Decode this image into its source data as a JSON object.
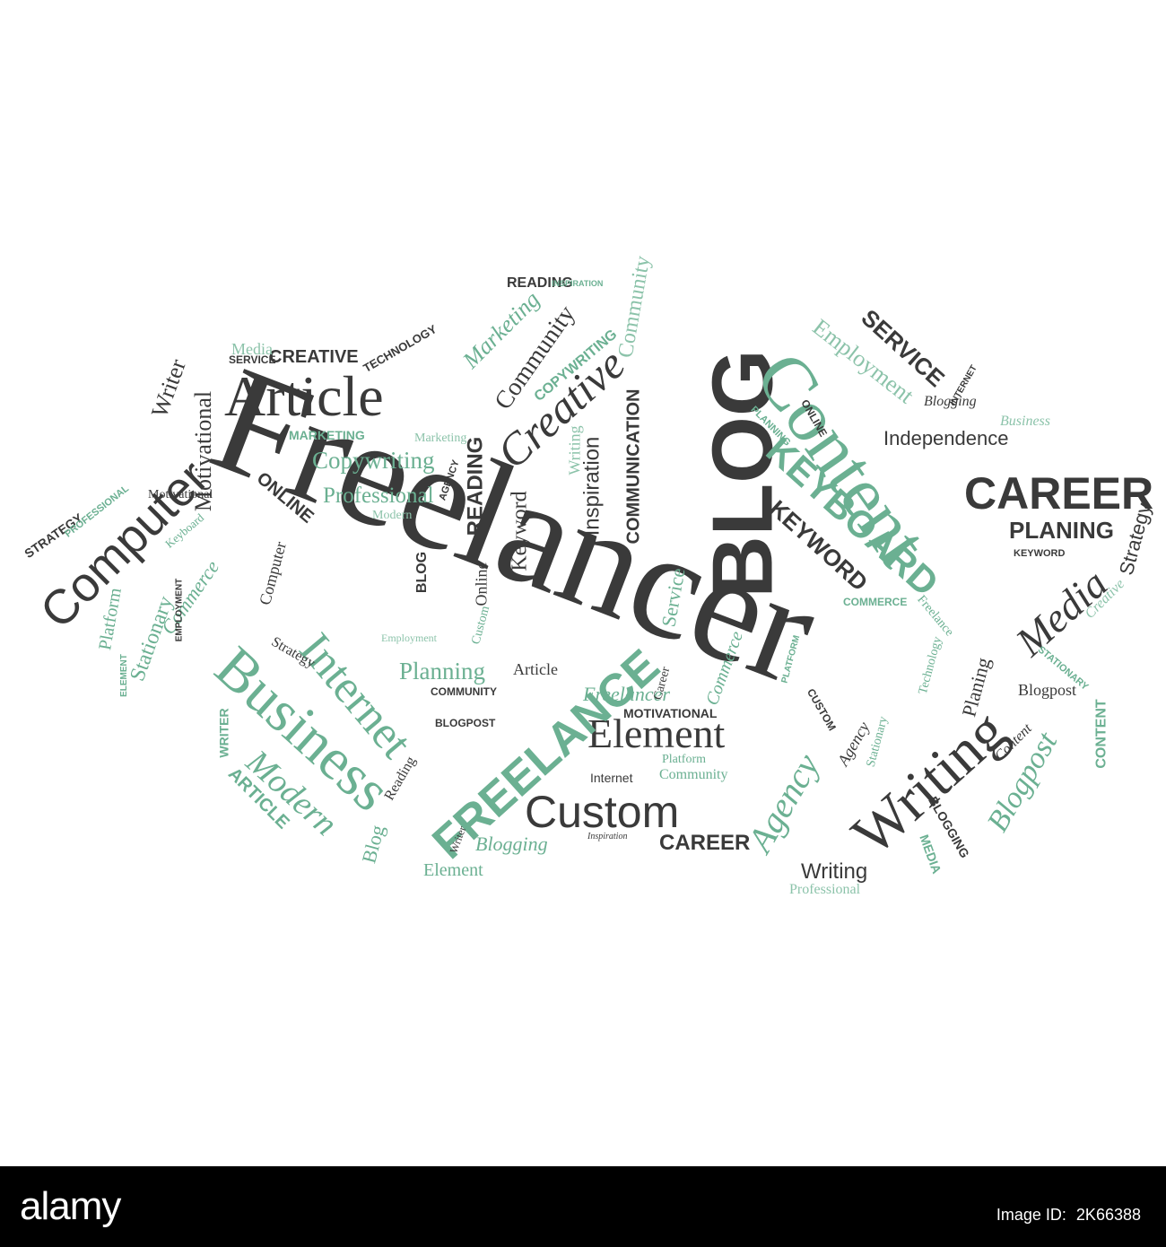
{
  "colors": {
    "dark": "#3a3a3a",
    "green": "#6bb092",
    "light_green": "#8cc3aa",
    "footer_bg": "#000000",
    "footer_text": "#ffffff"
  },
  "cloud": {
    "main_word": "Freelancer",
    "words": {
      "blog": "BLOG",
      "content": "Content",
      "career": "CAREER",
      "article": "Article",
      "computer": "Computer",
      "business": "Business",
      "internet": "Internet",
      "writing": "Writing",
      "custom": "Custom",
      "element": "Element",
      "keyboard": "KEYBOARD",
      "keyword": "KEYWORD",
      "creative": "Creative",
      "media": "Media",
      "planing": "PLANING",
      "freelance": "FREELANCE",
      "modern": "Modern",
      "agency": "Agency",
      "blogpost": "Blogpost",
      "copywriting": "Copywriting",
      "professional": "Professional",
      "independence": "Independence",
      "employment": "Employment",
      "service": "SERVICE",
      "community": "Community",
      "inspiration": "Inspiration",
      "communication": "COMMUNICATION",
      "reading": "READING",
      "motivational": "Motivational",
      "stationary": "Stationary",
      "platform": "Platform",
      "planning": "Planning",
      "strategy": "Strategy",
      "online": "ONLINE",
      "writer": "Writer",
      "marketing": "Marketing",
      "technology": "TECHNOLOGY",
      "creative_caps": "CREATIVE",
      "blogging": "Blogging",
      "motivational_caps": "MOTIVATIONAL",
      "career_small": "CAREER",
      "writing_small": "Writing",
      "keyword_serif": "Keyword",
      "copywriting_caps": "COPYWRITING",
      "commerce": "Commerce",
      "reading_top": "READING",
      "marketing_caps": "MARKETING",
      "community_caps": "COMMUNITY",
      "blogpost_caps": "BLOGPOST",
      "article_caps": "ARTICLE",
      "writer_caps": "WRITER",
      "strategy_caps": "STRATEGY",
      "content_caps": "CONTENT",
      "media_caps": "MEDIA",
      "blogging_caps": "BLOGGING",
      "commerce_caps": "COMMERCE",
      "element_small": "Element",
      "professional_small": "Professional",
      "planing_serif": "Planing",
      "independence_small": "Independence",
      "business_serif": "Business",
      "blogging_serif": "Blogging",
      "online_serif": "Online",
      "internet_small": "Internet",
      "keyboard_serif": "Keyboard",
      "service_serif": "Service",
      "platform_small": "Platform",
      "community_small": "Community",
      "inspiration_small": "Inspiration",
      "computer_small": "Computer",
      "blog_small": "Blog",
      "employment_caps": "EMPLOYMENT",
      "freelancer_small": "Freelancer",
      "freelance_serif": "Freelance",
      "modern_small": "Modern",
      "writing_tiny": "Writing",
      "custom_small": "Custom",
      "agency_small": "Agency",
      "article_small": "Article",
      "technology_serif": "Technology",
      "stationary_caps": "STATIONARY",
      "media_small": "Media",
      "professional_caps": "PROFESSIONAL",
      "reading_small": "Reading",
      "commerce_small": "Commerce",
      "inspiration_caps": "INSPIRATION",
      "career_serif": "Career",
      "creative_small": "Creative",
      "stationary_small": "Stationary",
      "strategy_small": "Strategy",
      "content_small": "Content",
      "keyword_caps": "KEYWORD",
      "agency_caps": "AGENCY",
      "service_caps": "SERVICE",
      "internet_caps": "INTERNET",
      "blog_caps": "BLOG",
      "custom_caps": "CUSTOM",
      "marketing_small": "Marketing",
      "writer_small": "Writer",
      "online_caps": "ONLINE",
      "platform_caps": "PLATFORM",
      "planning_caps": "PLANNING",
      "element_caps": "ELEMENT",
      "community_serif": "Community",
      "blogpost_small": "Blogpost",
      "employment_small": "Employment",
      "motivational_small": "Motivational"
    }
  },
  "footer": {
    "logo": "alamy",
    "image_id_label": "Image ID:",
    "image_id": "2K66388"
  }
}
